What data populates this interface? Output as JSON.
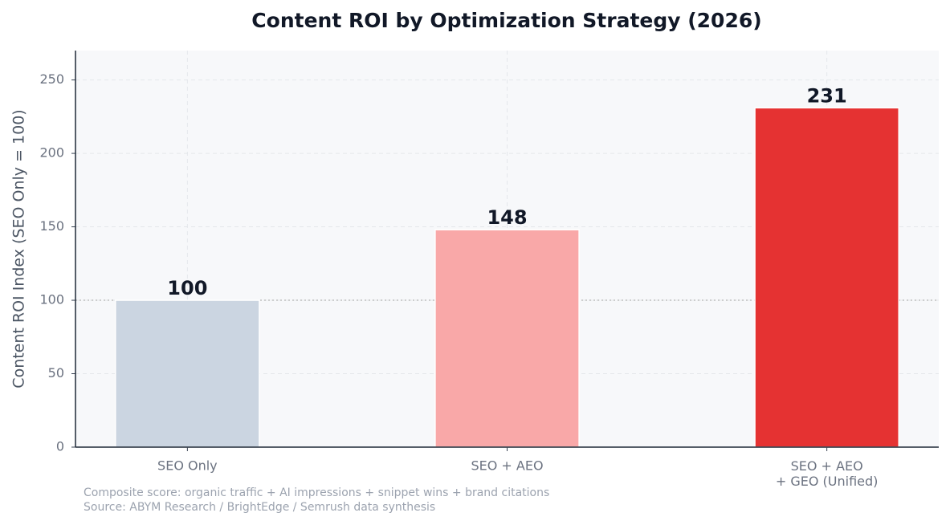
{
  "chart_data": {
    "type": "bar",
    "title": "Content ROI by Optimization Strategy (2026)",
    "y_label": "Content ROI Index (SEO Only = 100)",
    "categories": [
      "SEO Only",
      "SEO + AEO",
      "SEO + AEO\n+ GEO (Unified)"
    ],
    "values": [
      100,
      148,
      231
    ],
    "colors": [
      "#cbd5e1",
      "#f9a8a8",
      "#e53232"
    ],
    "ylim": [
      0,
      270
    ],
    "yticks": [
      0,
      50,
      100,
      150,
      200,
      250
    ],
    "grid": true,
    "reference_line": 100,
    "notes": [
      "Composite score: organic traffic + AI impressions + snippet wins + brand citations",
      "Source: ABYM Research / BrightEdge / Semrush data synthesis"
    ]
  }
}
